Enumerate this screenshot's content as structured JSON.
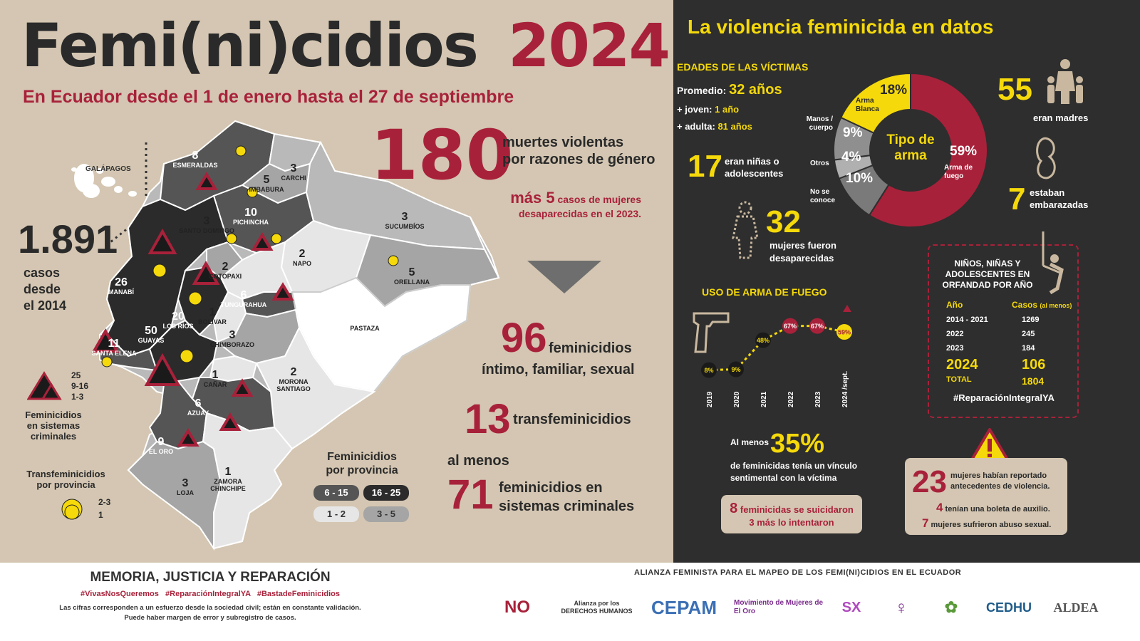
{
  "header": {
    "title_part1": "Femi(ni)cidios",
    "title_year": "2024",
    "subtitle": "En Ecuador desde el 1 de enero hasta el 27 de septiembre"
  },
  "stats": {
    "total": "180",
    "total_label_1": "muertes violentas",
    "total_label_2": "por razones de género",
    "extra_1": "más 5",
    "extra_2": "casos de mujeres",
    "extra_3": "desaparecidas en el 2023.",
    "historic": "1.891",
    "historic_label_1": "casos",
    "historic_label_2": "desde",
    "historic_label_3": "el 2014",
    "intimate": "96",
    "intimate_label_1": "feminicidios",
    "intimate_label_2": "íntimo, familiar, sexual",
    "trans": "13",
    "trans_label": "transfeminicidios",
    "criminal_pre": "al menos",
    "criminal": "71",
    "criminal_label_1": "feminicidios en",
    "criminal_label_2": "sistemas criminales"
  },
  "map": {
    "galapagos": "GALÁPAGOS",
    "provinces": [
      {
        "name": "ESMERALDAS",
        "count": "8"
      },
      {
        "name": "CARCHI",
        "count": "3"
      },
      {
        "name": "IMBABURA",
        "count": "5"
      },
      {
        "name": "PICHINCHA",
        "count": "10"
      },
      {
        "name": "SUCUMBÍOS",
        "count": "3"
      },
      {
        "name": "SANTO DOMINGO",
        "count": "3"
      },
      {
        "name": "NAPO",
        "count": "2"
      },
      {
        "name": "ORELLANA",
        "count": "5"
      },
      {
        "name": "MANABÍ",
        "count": "26"
      },
      {
        "name": "COTOPAXI",
        "count": "2"
      },
      {
        "name": "TUNGURAHUA",
        "count": "6"
      },
      {
        "name": "LOS RÍOS",
        "count": "20"
      },
      {
        "name": "BOLÍVAR",
        "count": "1"
      },
      {
        "name": "PASTAZA",
        "count": ""
      },
      {
        "name": "GUAYAS",
        "count": "50"
      },
      {
        "name": "CHIMBORAZO",
        "count": "3"
      },
      {
        "name": "SANTA ELENA",
        "count": "11"
      },
      {
        "name": "CAÑAR",
        "count": "1"
      },
      {
        "name": "MORONA SANTIAGO",
        "count": "2"
      },
      {
        "name": "AZUAY",
        "count": "6"
      },
      {
        "name": "EL ORO",
        "count": "9"
      },
      {
        "name": "LOJA",
        "count": "3"
      },
      {
        "name": "ZAMORA CHINCHIPE",
        "count": "1"
      }
    ],
    "triangle_legend": [
      "25",
      "9-16",
      "1-3"
    ],
    "triangle_legend_title": [
      "Feminicidios",
      "en sistemas",
      "criminales"
    ],
    "trans_legend_title": [
      "Transfeminicidios",
      "por provincia"
    ],
    "trans_legend": [
      "2-3",
      "1"
    ],
    "province_legend_title": [
      "Feminicidios",
      "por provincia"
    ],
    "province_legend": [
      {
        "label": "6 - 15",
        "color": "#555555"
      },
      {
        "label": "16 - 25",
        "color": "#2b2b2b"
      },
      {
        "label": "1 - 2",
        "color": "#e6e6e6"
      },
      {
        "label": "3 - 5",
        "color": "#a5a5a5"
      }
    ]
  },
  "right": {
    "heading": "La violencia feminicida en datos",
    "ages_title": "EDADES DE LAS VÍCTIMAS",
    "avg_label": "Promedio:",
    "avg_value": "32 años",
    "young_label": "+ joven:",
    "young_value": "1 año",
    "old_label": "+ adulta:",
    "old_value": "81 años",
    "minors": "17",
    "minors_label_1": "eran niñas o",
    "minors_label_2": "adolescentes",
    "donut_center_1": "Tipo de",
    "donut_center_2": "arma",
    "donut": [
      {
        "label": "Arma de fuego",
        "value": 59,
        "color": "#a8213a",
        "text": "59%"
      },
      {
        "label": "No se conoce",
        "value": 10,
        "color": "#7a7a7a",
        "text": "10%"
      },
      {
        "label": "Otros",
        "value": 4,
        "color": "#b0b0b0",
        "text": "4%"
      },
      {
        "label": "Manos / cuerpo",
        "value": 9,
        "color": "#8f8f8f",
        "text": "9%"
      },
      {
        "label": "Arma Blanca",
        "value": 18,
        "color": "#f5d90a",
        "text": "18%"
      }
    ],
    "mothers": "55",
    "mothers_label": "eran madres",
    "pregnant": "7",
    "pregnant_label_1": "estaban",
    "pregnant_label_2": "embarazadas",
    "missing": "32",
    "missing_label_1": "mujeres fueron",
    "missing_label_2": "desaparecidas",
    "firearm_title": "USO DE ARMA DE FUEGO",
    "orphans_title": [
      "NIÑOS, NIÑAS Y",
      "ADOLESCENTES EN",
      "ORFANDAD POR AÑO"
    ],
    "orphans_head_year": "Año",
    "orphans_head_cases": "Casos",
    "orphans_head_note": "(al menos)",
    "orphans_rows": [
      {
        "year": "2014 - 2021",
        "cases": "1269"
      },
      {
        "year": "2022",
        "cases": "245"
      },
      {
        "year": "2023",
        "cases": "184"
      },
      {
        "year": "2024",
        "cases": "106"
      },
      {
        "year": "TOTAL",
        "cases": "1804"
      }
    ],
    "orphans_hashtag": "#ReparaciónIntegralYA",
    "bond_pre": "Al menos",
    "bond_value": "35%",
    "bond_label_1": "de feminicidas tenía un vínculo",
    "bond_label_2": "sentimental con la víctima",
    "suicide_count": "8",
    "suicide_label": "feminicidas se suicidaron",
    "suicide_attempt": "3 más lo intentaron",
    "prior_count": "23",
    "prior_label_1": "mujeres habían reportado",
    "prior_label_2": "antecedentes de violencia.",
    "boleta_count": "4",
    "boleta_label": "tenían una boleta de auxilio.",
    "abuse_count": "7",
    "abuse_label": "mujeres sufrieron abuso sexual."
  },
  "chart_data": {
    "type": "line",
    "x": [
      "2019",
      "2020",
      "2021",
      "2022",
      "2023",
      "2024 /sept."
    ],
    "series": [
      {
        "values": [
          8,
          9,
          48,
          67,
          67,
          59
        ]
      }
    ],
    "data_labels": [
      "8%",
      "9%",
      "48%",
      "67%",
      "67%",
      "59%"
    ]
  },
  "footer": {
    "motto": "MEMORIA, JUSTICIA Y REPARACIÓN",
    "hashtags": "#VivasNosQueremos   #ReparaciónIntegralYA   #BastadeFeminicidios",
    "note_1": "Las cifras corresponden a un esfuerzo desde la sociedad civil; están en constante validación.",
    "note_2": "Puede haber margen de error y subregistro de casos.",
    "alliance": "ALIANZA FEMINISTA PARA EL MAPEO DE LOS FEMI(NI)CIDIOS EN EL ECUADOR",
    "logos": [
      "NO",
      "Alianza por los DERECHOS HUMANOS",
      "CEPAM",
      "Movimiento de Mujeres de El Oro",
      "SX",
      "♀",
      "✿",
      "CEDHU",
      "ALDEA"
    ]
  }
}
